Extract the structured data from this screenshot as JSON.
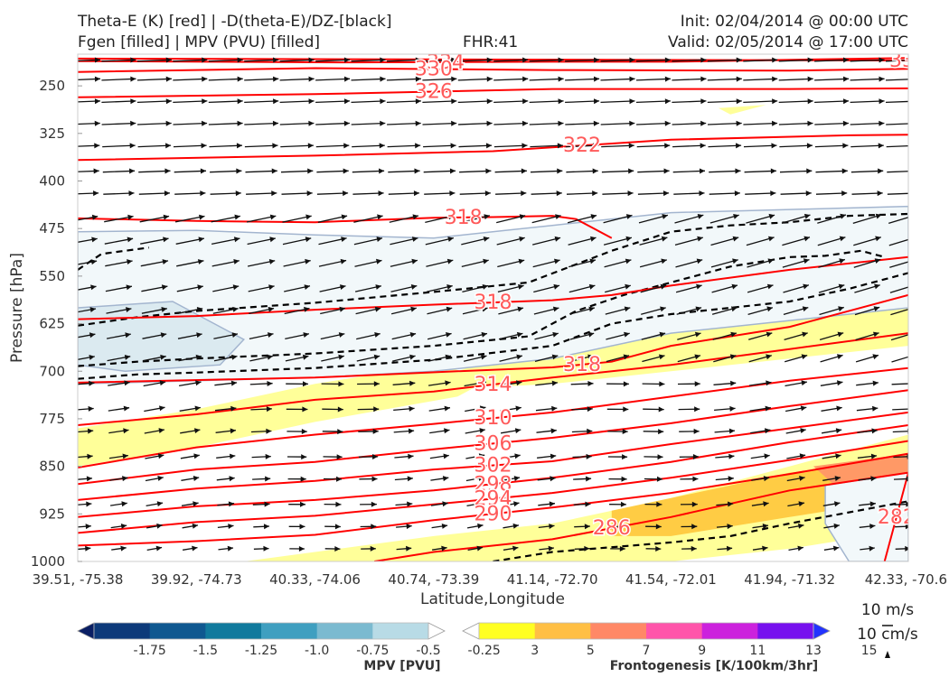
{
  "header": {
    "title_line1": "Theta-E (K) [red] | -D(theta-E)/DZ-[black]",
    "title_line2": "Fgen [filled] | MPV (PVU) [filled]",
    "fhr": "FHR:41",
    "init": "Init: 02/04/2014 @ 00:00 UTC",
    "valid": "Valid: 02/05/2014 @ 17:00 UTC"
  },
  "colors": {
    "theta_e": "#ff0000",
    "label": "#ff5a5a",
    "stability": "#000000",
    "mpv_contour": "#a3b5cf",
    "wind": "#111111"
  },
  "chart_data": {
    "type": "cross-section",
    "xlabel": "Latitude,Longitude",
    "ylabel": "Pressure [hPa]",
    "x_ticks": [
      "39.51, -75.38",
      "39.92, -74.73",
      "40.33, -74.06",
      "40.74, -73.39",
      "41.14, -72.70",
      "41.54, -72.01",
      "41.94, -71.32",
      "42.33, -70.6"
    ],
    "y_ticks": [
      250,
      325,
      400,
      475,
      550,
      625,
      700,
      775,
      850,
      925,
      1000
    ],
    "ylim": [
      200,
      1000
    ],
    "theta_e_contours": [
      {
        "value": 338,
        "label": "338",
        "x": [
          0,
          7
        ],
        "y": [
          207,
          210
        ]
      },
      {
        "value": 334,
        "label": "334",
        "x": [
          0,
          2.2,
          4,
          5,
          7
        ],
        "y": [
          211,
          213,
          212,
          212,
          206
        ]
      },
      {
        "value": 330,
        "label": "330",
        "x": [
          0,
          2,
          4,
          6,
          7
        ],
        "y": [
          228,
          222,
          225,
          226,
          223
        ]
      },
      {
        "value": 326,
        "label": "326",
        "x": [
          0,
          2,
          4,
          6,
          7
        ],
        "y": [
          268,
          263,
          255,
          255,
          254
        ]
      },
      {
        "value": 322,
        "label": "322",
        "x": [
          0,
          2,
          3.5,
          5,
          6.5,
          7
        ],
        "y": [
          367,
          360,
          353,
          335,
          328,
          327
        ]
      },
      {
        "value": 318,
        "label": "318",
        "x": [
          0,
          1,
          2,
          3,
          3.5,
          4,
          4.2,
          4.5
        ],
        "y": [
          459,
          463,
          465,
          458,
          457,
          455,
          460,
          490
        ]
      },
      {
        "value": 318,
        "label": "318",
        "x": [
          0,
          1,
          2,
          3,
          4,
          4.5,
          5,
          6,
          7
        ],
        "y": [
          618,
          613,
          603,
          595,
          588,
          580,
          565,
          540,
          520
        ]
      },
      {
        "value": 318,
        "label": "318",
        "x": [
          0,
          2,
          3.2,
          4,
          4.5,
          5,
          6,
          7
        ],
        "y": [
          718,
          710,
          700,
          694,
          685,
          660,
          630,
          580
        ]
      },
      {
        "value": 314,
        "label": "314",
        "x": [
          0,
          1,
          2,
          3,
          4,
          5,
          6,
          7
        ],
        "y": [
          785,
          768,
          745,
          732,
          710,
          690,
          665,
          640
        ]
      },
      {
        "value": 310,
        "label": "310",
        "x": [
          0,
          1,
          2,
          3,
          4,
          5,
          6,
          7
        ],
        "y": [
          852,
          820,
          800,
          783,
          765,
          740,
          715,
          695
        ]
      },
      {
        "value": 306,
        "label": "306",
        "x": [
          0,
          1,
          2,
          3,
          4,
          5,
          6,
          7
        ],
        "y": [
          878,
          855,
          843,
          823,
          805,
          782,
          755,
          730
        ]
      },
      {
        "value": 302,
        "label": "302",
        "x": [
          0,
          1,
          2,
          3,
          4,
          5,
          6,
          7
        ],
        "y": [
          903,
          885,
          873,
          855,
          842,
          815,
          790,
          765
        ]
      },
      {
        "value": 298,
        "label": "298",
        "x": [
          0,
          1,
          2,
          3,
          4,
          5,
          6,
          7
        ],
        "y": [
          930,
          913,
          903,
          888,
          868,
          843,
          812,
          785
        ]
      },
      {
        "value": 294,
        "label": "294",
        "x": [
          0,
          1,
          2,
          3,
          4,
          5,
          6,
          7
        ],
        "y": [
          955,
          938,
          928,
          910,
          892,
          868,
          840,
          810
        ]
      },
      {
        "value": 290,
        "label": "290",
        "x": [
          0,
          1,
          2,
          3,
          4,
          5,
          6,
          7
        ],
        "y": [
          975,
          968,
          958,
          935,
          915,
          892,
          862,
          830
        ]
      },
      {
        "value": 286,
        "label": "286",
        "x": [
          2.5,
          3,
          4,
          5,
          6,
          7
        ],
        "y": [
          1000,
          985,
          965,
          930,
          888,
          860
        ]
      },
      {
        "value": 282,
        "label": "282",
        "x": [
          6.8,
          6.9,
          7
        ],
        "y": [
          1000,
          930,
          860
        ]
      }
    ],
    "stability_contours": [
      {
        "x": [
          0,
          0.5,
          1,
          2,
          3,
          3.8,
          4.5,
          5,
          5.5,
          6,
          6.5,
          7
        ],
        "y": [
          628,
          615,
          605,
          592,
          575,
          560,
          510,
          480,
          470,
          465,
          455,
          452
        ]
      },
      {
        "x": [
          0,
          0.5,
          1,
          2,
          3,
          3.8,
          4.2,
          4.6,
          5,
          5.5,
          6,
          6.3,
          6.6,
          6.8
        ],
        "y": [
          692,
          685,
          680,
          672,
          660,
          645,
          605,
          580,
          560,
          535,
          520,
          518,
          510,
          520
        ]
      },
      {
        "x": [
          0,
          0.5,
          1,
          2,
          3,
          4,
          4.5,
          5,
          6,
          6.5,
          7
        ],
        "y": [
          712,
          705,
          702,
          695,
          682,
          660,
          625,
          610,
          590,
          570,
          545
        ]
      },
      {
        "x": [
          0,
          0.2,
          0.6
        ],
        "y": [
          540,
          515,
          505
        ]
      },
      {
        "x": [
          3.5,
          4,
          5,
          5.5,
          6,
          7
        ],
        "y": [
          1000,
          985,
          970,
          960,
          940,
          905
        ]
      }
    ],
    "mpv_regions": [
      {
        "level": -0.25,
        "color": "#f2f8fa",
        "x": [
          0,
          1,
          2,
          3,
          4,
          5,
          6,
          7,
          7,
          6,
          5,
          4,
          3,
          2,
          1,
          0
        ],
        "y": [
          480,
          478,
          485,
          490,
          470,
          450,
          445,
          440,
          600,
          620,
          640,
          680,
          700,
          710,
          715,
          720
        ]
      },
      {
        "level": -0.5,
        "color": "#dbeaf0",
        "x": [
          0,
          0.8,
          1.4,
          1.2,
          0.4,
          0
        ],
        "y": [
          600,
          590,
          650,
          690,
          700,
          690
        ]
      },
      {
        "level": -0.25,
        "color": "#f2f8fa",
        "x": [
          6.3,
          7,
          7,
          6.5,
          6.3
        ],
        "y": [
          880,
          860,
          1000,
          1000,
          940
        ]
      }
    ],
    "frontogenesis_regions": [
      {
        "level": 3,
        "color": "#ffff99",
        "x": [
          0,
          1,
          2,
          3,
          3.5,
          3.2,
          2,
          1,
          0
        ],
        "y": [
          790,
          760,
          720,
          690,
          710,
          740,
          780,
          820,
          850
        ]
      },
      {
        "level": 3,
        "color": "#ffff99",
        "x": [
          3.2,
          4,
          5,
          6,
          7,
          7,
          6,
          5,
          4,
          3.5
        ],
        "y": [
          700,
          650,
          620,
          600,
          560,
          660,
          680,
          700,
          720,
          725
        ]
      },
      {
        "level": 3,
        "color": "#ffff99",
        "x": [
          1.4,
          3,
          4,
          5,
          6,
          7,
          7,
          6,
          5,
          4,
          3,
          1.4
        ],
        "y": [
          1000,
          960,
          940,
          900,
          850,
          800,
          950,
          980,
          1000,
          1000,
          1000,
          1000
        ]
      },
      {
        "level": 3,
        "color": "#ffff99",
        "x": [
          5.4,
          5.8,
          5.5
        ],
        "y": [
          285,
          280,
          295
        ]
      },
      {
        "level": 5,
        "color": "#ffcc44",
        "x": [
          4.5,
          5,
          6,
          7,
          7,
          6,
          5,
          4.5
        ],
        "y": [
          920,
          900,
          860,
          840,
          900,
          930,
          960,
          960
        ]
      },
      {
        "level": 7,
        "color": "#ff9966",
        "x": [
          6.2,
          7,
          7,
          6.5
        ],
        "y": [
          850,
          830,
          900,
          900
        ]
      }
    ],
    "wind_levels": [
      210,
      240,
      275,
      310,
      345,
      385,
      420,
      460,
      495,
      530,
      570,
      605,
      645,
      680,
      720,
      760,
      795,
      835,
      870,
      910,
      945,
      980
    ],
    "wind_columns": 24,
    "mpv_colorbar": {
      "label": "MPV [PVU]",
      "ticks": [
        "-1.75",
        "-1.5",
        "-1.25",
        "-1.0",
        "-0.75",
        "-0.5",
        "-0.25"
      ],
      "colors": [
        "#0a1f64",
        "#0d3a7a",
        "#0f5890",
        "#117a9d",
        "#3f9fc0",
        "#7bbad0",
        "#b8dbe6",
        "#ffffff"
      ]
    },
    "fgen_colorbar": {
      "label": "Frontogenesis [K/100km/3hr]",
      "ticks": [
        "3",
        "5",
        "7",
        "9",
        "11",
        "13",
        "15"
      ],
      "colors": [
        "#ffffff",
        "#ffff22",
        "#ffbf44",
        "#ff8866",
        "#ff55aa",
        "#cc22dd",
        "#7711ee",
        "#2233ff"
      ]
    },
    "wind_reference": {
      "horizontal": "10 m/s",
      "vertical": "10 cm/s"
    }
  }
}
